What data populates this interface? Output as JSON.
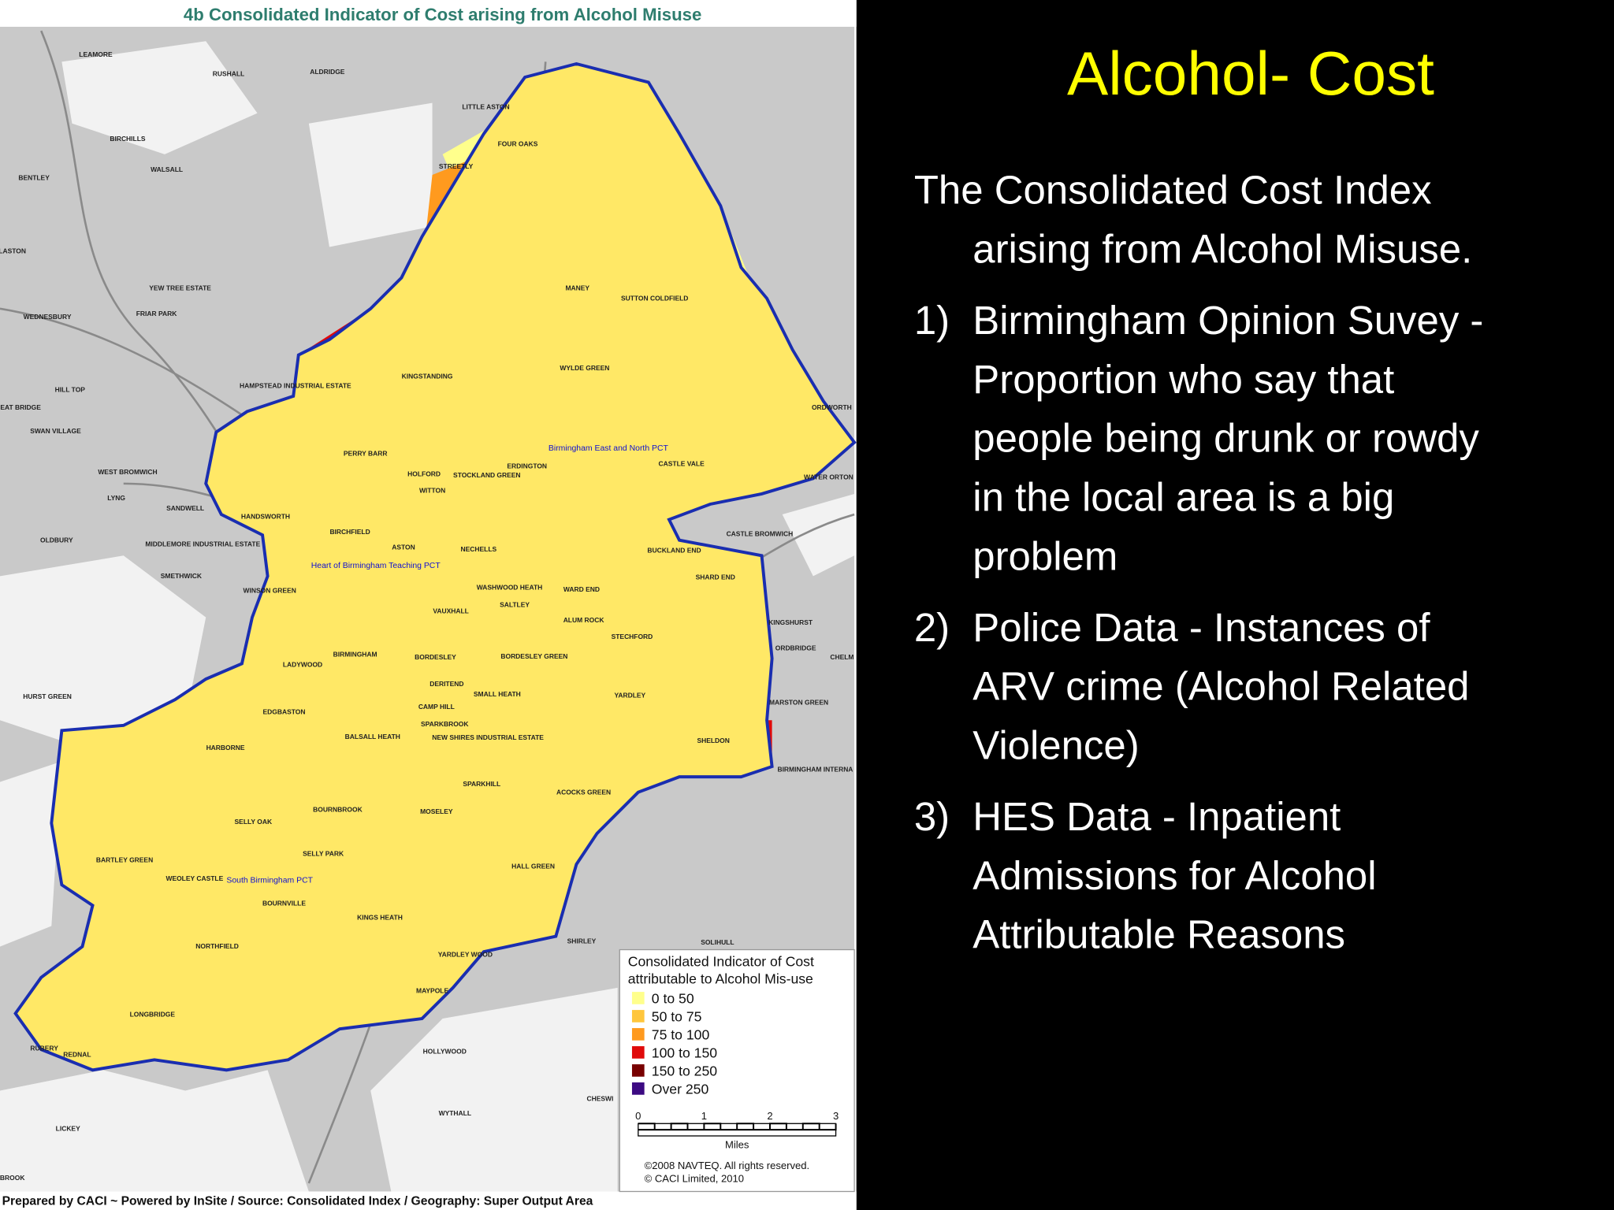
{
  "map": {
    "title": "4b Consolidated Indicator of Cost arising from Alcohol Misuse",
    "places": [
      "LEAMORE",
      "RUSHALL",
      "ALDRIDGE",
      "BIRCHILLS",
      "WALSALL",
      "BENTLEY",
      "LITTLE ASTON",
      "FOUR OAKS",
      "STREETLY",
      "LASTON",
      "YEW TREE ESTATE",
      "WEDNESBURY",
      "FRIAR PARK",
      "MANEY",
      "SUTTON COLDFIELD",
      "WYLDE GREEN",
      "HAMPSTEAD INDUSTRIAL ESTATE",
      "KINGSTANDING",
      "HILL TOP",
      "EAT BRIDGE",
      "SWAN VILLAGE",
      "PERRY BARR",
      "ERDINGTON",
      "CASTLE VALE",
      "HOLFORD",
      "STOCKLAND GREEN",
      "WEST BROMWICH",
      "WITTON",
      "WATER ORTON",
      "LYNG",
      "SANDWELL",
      "HANDSWORTH",
      "OLDBURY",
      "MIDDLEMORE INDUSTRIAL ESTATE",
      "BIRCHFIELD",
      "ASTON",
      "NECHELLS",
      "CASTLE BROMWICH",
      "BUCKLAND END",
      "SMETHWICK",
      "WINSON GREEN",
      "WASHWOOD HEATH",
      "WARD END",
      "SHARD END",
      "SALTLEY",
      "VAUXHALL",
      "ALUM ROCK",
      "KINGSHURST",
      "STECHFORD",
      "BIRMINGHAM",
      "BORDESLEY",
      "BORDESLEY GREEN",
      "ORDBRIDGE",
      "CHELM",
      "LADYWOOD",
      "DERITEND",
      "SMALL HEATH",
      "HURST GREEN",
      "YARDLEY",
      "MARSTON GREEN",
      "EDGBASTON",
      "CAMP HILL",
      "SPARKBROOK",
      "BALSALL HEATH",
      "NEW SHIRES INDUSTRIAL ESTATE",
      "SHELDON",
      "HARBORNE",
      "BIRMINGHAM INTERNA",
      "ACOCKS GREEN",
      "SPARKHILL",
      "BOURNBROOK",
      "MOSELEY",
      "SELLY OAK",
      "SELLY PARK",
      "BARTLEY GREEN",
      "HALL GREEN",
      "WEOLEY CASTLE",
      "BOURNVILLE",
      "KINGS HEATH",
      "SOLIHULL",
      "SHIRLEY",
      "NORTHFIELD",
      "YARDLEY WOOD",
      "MAYPOLE",
      "LONGBRIDGE",
      "RUBERY",
      "REDNAL",
      "HOLLYWOOD",
      "CHESWI",
      "WYTHALL",
      "LICKEY",
      "BROOK",
      "ORDWORTH"
    ],
    "pct_labels": [
      "Birmingham East and North PCT",
      "Heart of Birmingham Teaching PCT",
      "South Birmingham PCT"
    ],
    "legend": {
      "title_lines": [
        "Consolidated Indicator of Cost",
        "attributable to Alcohol Mis-use"
      ],
      "items": [
        {
          "label": "0 to 50",
          "color": "#ffff8c"
        },
        {
          "label": "50 to 75",
          "color": "#ffc63c"
        },
        {
          "label": "75 to 100",
          "color": "#ff9a1e"
        },
        {
          "label": "100 to 150",
          "color": "#e00a0a"
        },
        {
          "label": "150 to 250",
          "color": "#780000"
        },
        {
          "label": "Over 250",
          "color": "#3c0a82"
        }
      ]
    },
    "scale": {
      "ticks": [
        "0",
        "1",
        "2",
        "3"
      ],
      "unit": "Miles"
    },
    "copyright": [
      "©2008 NAVTEQ. All rights reserved.",
      "© CACI Limited, 2010"
    ],
    "footer": "Prepared by CACI ~ Powered by InSite /  Source:  Consolidated Index  /  Geography:  Super Output Area"
  },
  "slide": {
    "title": "Alcohol- Cost",
    "intro_lines": [
      "The Consolidated Cost Index",
      "arising from Alcohol Misuse."
    ],
    "items": [
      {
        "number": "1)",
        "lines": [
          "Birmingham Opinion Suvey -",
          "Proportion who say that",
          "people being drunk or rowdy",
          "in the local area is a big",
          "problem"
        ]
      },
      {
        "number": "2)",
        "lines": [
          "Police Data - Instances of",
          "ARV crime (Alcohol Related",
          "Violence)"
        ]
      },
      {
        "number": "3)",
        "lines": [
          "HES Data - Inpatient",
          "Admissions for Alcohol",
          "Attributable Reasons"
        ]
      }
    ]
  }
}
